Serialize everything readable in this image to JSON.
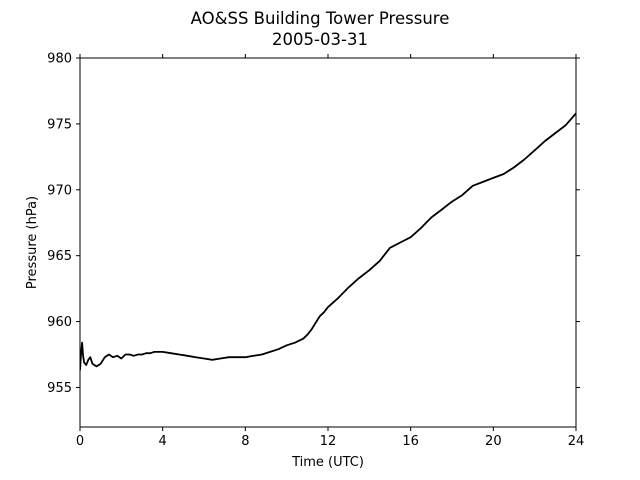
{
  "chart_data": {
    "type": "line",
    "title": "AO&SS Building Tower Pressure",
    "subtitle": "2005-03-31",
    "xlabel": "Time (UTC)",
    "ylabel": "Pressure (hPa)",
    "xlim": [
      0,
      24
    ],
    "ylim": [
      952,
      980
    ],
    "xticks": [
      0,
      4,
      8,
      12,
      16,
      20,
      24
    ],
    "yticks": [
      955,
      960,
      965,
      970,
      975,
      980
    ],
    "grid": false,
    "legend": "none",
    "series": [
      {
        "color": "#000000",
        "x": [
          0,
          0.05,
          0.1,
          0.15,
          0.2,
          0.3,
          0.4,
          0.5,
          0.6,
          0.7,
          0.8,
          1.0,
          1.2,
          1.4,
          1.6,
          1.8,
          2.0,
          2.2,
          2.4,
          2.6,
          2.8,
          3.0,
          3.2,
          3.4,
          3.6,
          3.8,
          4.0,
          4.4,
          4.8,
          5.2,
          5.6,
          6.0,
          6.4,
          6.8,
          7.2,
          7.6,
          8.0,
          8.4,
          8.8,
          9.2,
          9.6,
          10.0,
          10.4,
          10.8,
          11.0,
          11.2,
          11.4,
          11.6,
          11.8,
          12.0,
          12.5,
          13.0,
          13.5,
          14.0,
          14.5,
          15.0,
          15.5,
          16.0,
          16.5,
          17.0,
          17.5,
          18.0,
          18.5,
          19.0,
          19.5,
          20.0,
          20.5,
          21.0,
          21.5,
          22.0,
          22.5,
          23.0,
          23.5,
          24.0
        ],
        "y": [
          956.3,
          957.5,
          958.4,
          957.4,
          956.9,
          956.7,
          957.1,
          957.3,
          956.8,
          956.7,
          956.6,
          956.8,
          957.3,
          957.5,
          957.3,
          957.4,
          957.2,
          957.5,
          957.5,
          957.4,
          957.5,
          957.5,
          957.6,
          957.6,
          957.7,
          957.7,
          957.7,
          957.6,
          957.5,
          957.4,
          957.3,
          957.2,
          957.1,
          957.2,
          957.3,
          957.3,
          957.3,
          957.4,
          957.5,
          957.7,
          957.9,
          958.2,
          958.4,
          958.7,
          959.0,
          959.4,
          959.9,
          960.4,
          960.7,
          961.1,
          961.8,
          962.6,
          963.3,
          963.9,
          964.6,
          965.6,
          966.0,
          966.4,
          967.1,
          967.9,
          968.5,
          969.1,
          969.6,
          970.3,
          970.6,
          970.9,
          971.2,
          971.7,
          972.3,
          973.0,
          973.7,
          974.3,
          974.9,
          975.8
        ]
      }
    ]
  }
}
